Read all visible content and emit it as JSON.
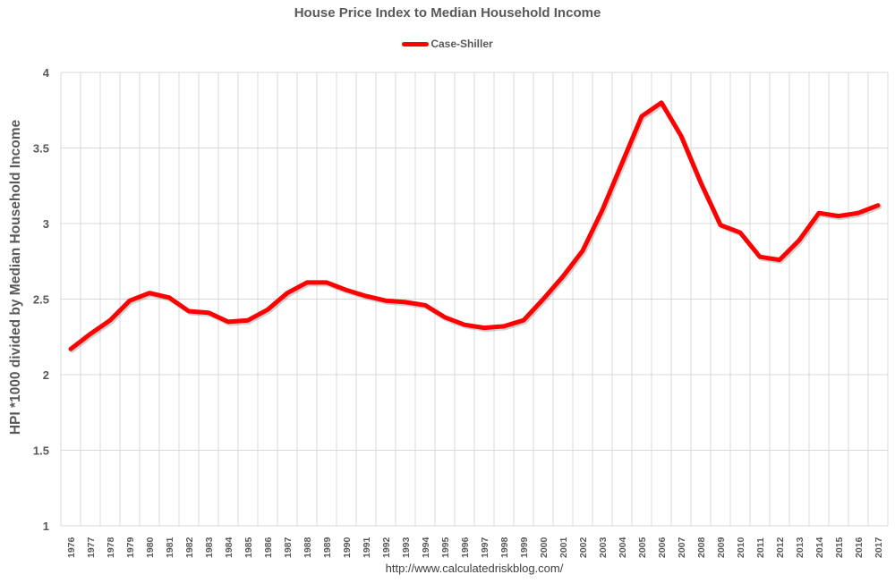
{
  "chart_data": {
    "type": "line",
    "title": "House Price Index to Median Household Income",
    "xlabel": "",
    "ylabel": "HPI *1000 divided by Median Household Income",
    "ylim": [
      1,
      4
    ],
    "yticks": [
      "1",
      "1.5",
      "2",
      "2.5",
      "3",
      "3.5",
      "4"
    ],
    "grid": true,
    "legend_position": "top",
    "categories": [
      "1976",
      "1977",
      "1978",
      "1979",
      "1980",
      "1981",
      "1982",
      "1983",
      "1984",
      "1985",
      "1986",
      "1987",
      "1988",
      "1989",
      "1990",
      "1991",
      "1992",
      "1993",
      "1994",
      "1995",
      "1996",
      "1997",
      "1998",
      "1999",
      "2000",
      "2001",
      "2002",
      "2003",
      "2004",
      "2005",
      "2006",
      "2007",
      "2008",
      "2009",
      "2010",
      "2011",
      "2012",
      "2013",
      "2014",
      "2015",
      "2016",
      "2017"
    ],
    "series": [
      {
        "name": "Case-Shiller",
        "color": "#ff0000",
        "values": [
          2.17,
          2.27,
          2.36,
          2.49,
          2.54,
          2.51,
          2.42,
          2.41,
          2.35,
          2.36,
          2.43,
          2.54,
          2.61,
          2.61,
          2.56,
          2.52,
          2.49,
          2.48,
          2.46,
          2.38,
          2.33,
          2.31,
          2.32,
          2.36,
          2.5,
          2.65,
          2.82,
          3.09,
          3.4,
          3.71,
          3.8,
          3.58,
          3.27,
          2.99,
          2.94,
          2.78,
          2.76,
          2.89,
          3.07,
          3.05,
          3.07,
          3.12
        ]
      }
    ],
    "source_note": "http://www.calculatedriskblog.com/"
  },
  "colors": {
    "series_line": "#ff0000",
    "gridline": "#d9d9d9",
    "text": "#595959"
  }
}
